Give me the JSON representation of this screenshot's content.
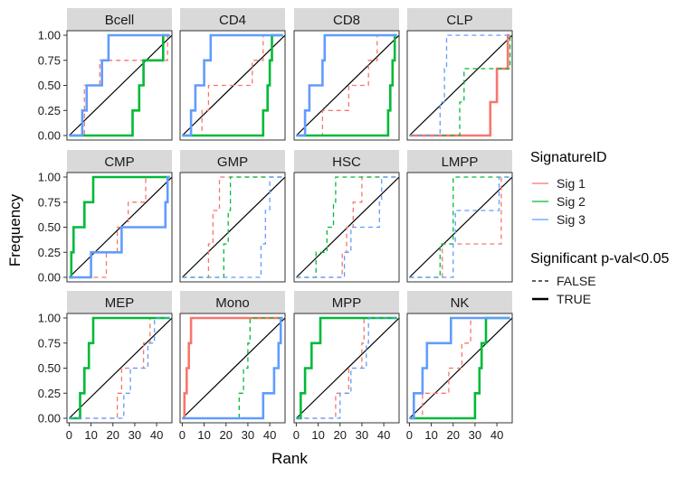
{
  "chart_data": {
    "type": "line",
    "subtype": "step-ecdf-facets",
    "title": "",
    "xlabel": "Rank",
    "ylabel": "Frequency",
    "xlim": [
      -1,
      47
    ],
    "ylim": [
      0,
      1
    ],
    "x_ticks": [
      0,
      10,
      20,
      30,
      40
    ],
    "y_ticks": [
      0,
      0.25,
      0.5,
      0.75,
      1
    ],
    "y_tick_labels": [
      "0.00",
      "0.25",
      "0.50",
      "0.75",
      "1.00"
    ],
    "legend_color_title": "SignatureID",
    "legend_linetype_title": "Significant p-val<0.05",
    "legend_placement": "right",
    "series": [
      {
        "name": "Sig 1",
        "color": "#F8766D"
      },
      {
        "name": "Sig 2",
        "color": "#00BA38"
      },
      {
        "name": "Sig 3",
        "color": "#619CFF"
      }
    ],
    "linetypes": [
      {
        "name": "FALSE",
        "dash": "dashed"
      },
      {
        "name": "TRUE",
        "dash": "solid"
      }
    ],
    "panels": [
      {
        "name": "Bcell",
        "lines": [
          {
            "sig": "Sig 1",
            "sig_flag": false,
            "x": [
              0,
              7,
              9,
              14,
              20,
              38,
              45
            ],
            "y": [
              0,
              0.5,
              0.5,
              0.75,
              0.75,
              0.75,
              1
            ]
          },
          {
            "sig": "Sig 2",
            "sig_flag": true,
            "x": [
              0,
              29,
              32,
              34,
              40,
              43,
              46
            ],
            "y": [
              0,
              0.25,
              0.5,
              0.75,
              0.75,
              1,
              1
            ]
          },
          {
            "sig": "Sig 3",
            "sig_flag": true,
            "x": [
              0,
              6,
              8,
              15,
              18,
              46
            ],
            "y": [
              0,
              0.25,
              0.5,
              0.75,
              1,
              1
            ]
          }
        ]
      },
      {
        "name": "CD4",
        "lines": [
          {
            "sig": "Sig 1",
            "sig_flag": false,
            "x": [
              0,
              9,
              12,
              24,
              32,
              37,
              46
            ],
            "y": [
              0,
              0.25,
              0.5,
              0.5,
              0.75,
              1,
              1
            ]
          },
          {
            "sig": "Sig 2",
            "sig_flag": true,
            "x": [
              0,
              37,
              39,
              40,
              41,
              46
            ],
            "y": [
              0,
              0.25,
              0.5,
              0.75,
              1,
              1
            ]
          },
          {
            "sig": "Sig 3",
            "sig_flag": true,
            "x": [
              0,
              4,
              6,
              10,
              13,
              46
            ],
            "y": [
              0,
              0.25,
              0.5,
              0.75,
              1,
              1
            ]
          }
        ]
      },
      {
        "name": "CD8",
        "lines": [
          {
            "sig": "Sig 1",
            "sig_flag": false,
            "x": [
              0,
              12,
              24,
              33,
              37,
              46
            ],
            "y": [
              0,
              0.25,
              0.5,
              0.75,
              1,
              1
            ]
          },
          {
            "sig": "Sig 2",
            "sig_flag": true,
            "x": [
              0,
              42,
              43,
              44,
              45,
              46
            ],
            "y": [
              0,
              0.25,
              0.5,
              0.75,
              1,
              1
            ]
          },
          {
            "sig": "Sig 3",
            "sig_flag": true,
            "x": [
              0,
              4,
              6,
              12,
              13,
              46
            ],
            "y": [
              0,
              0.25,
              0.5,
              0.75,
              1,
              1
            ]
          }
        ]
      },
      {
        "name": "CLP",
        "lines": [
          {
            "sig": "Sig 1",
            "sig_flag": true,
            "x": [
              0,
              37,
              40,
              45,
              46
            ],
            "y": [
              0,
              0.333,
              0.667,
              1,
              1
            ]
          },
          {
            "sig": "Sig 2",
            "sig_flag": false,
            "x": [
              0,
              23,
              25,
              46
            ],
            "y": [
              0,
              0.333,
              0.667,
              1
            ]
          },
          {
            "sig": "Sig 3",
            "sig_flag": false,
            "x": [
              0,
              14,
              16,
              17,
              46
            ],
            "y": [
              0,
              0.333,
              0.667,
              1,
              1
            ]
          }
        ]
      },
      {
        "name": "CMP",
        "lines": [
          {
            "sig": "Sig 1",
            "sig_flag": false,
            "x": [
              0,
              17,
              22,
              27,
              35,
              46
            ],
            "y": [
              0,
              0.25,
              0.5,
              0.75,
              1,
              1
            ]
          },
          {
            "sig": "Sig 2",
            "sig_flag": true,
            "x": [
              0,
              1,
              2,
              7,
              11,
              46
            ],
            "y": [
              0,
              0.25,
              0.5,
              0.75,
              1,
              1
            ]
          },
          {
            "sig": "Sig 3",
            "sig_flag": true,
            "x": [
              0,
              10,
              24,
              44,
              45,
              46
            ],
            "y": [
              0,
              0.25,
              0.5,
              0.75,
              1,
              1
            ]
          }
        ]
      },
      {
        "name": "GMP",
        "lines": [
          {
            "sig": "Sig 1",
            "sig_flag": false,
            "x": [
              0,
              12,
              14,
              17,
              46
            ],
            "y": [
              0,
              0.333,
              0.667,
              1,
              1
            ]
          },
          {
            "sig": "Sig 2",
            "sig_flag": false,
            "x": [
              0,
              19,
              21,
              22,
              46
            ],
            "y": [
              0,
              0.333,
              0.667,
              1,
              1
            ]
          },
          {
            "sig": "Sig 3",
            "sig_flag": false,
            "x": [
              0,
              36,
              38,
              40,
              46
            ],
            "y": [
              0,
              0.333,
              0.667,
              1,
              1
            ]
          }
        ]
      },
      {
        "name": "HSC",
        "lines": [
          {
            "sig": "Sig 1",
            "sig_flag": false,
            "x": [
              0,
              21,
              23,
              26,
              30,
              46
            ],
            "y": [
              0,
              0.25,
              0.5,
              0.75,
              1,
              1
            ]
          },
          {
            "sig": "Sig 2",
            "sig_flag": false,
            "x": [
              0,
              9,
              14,
              17,
              18,
              46
            ],
            "y": [
              0,
              0.25,
              0.5,
              0.75,
              1,
              1
            ]
          },
          {
            "sig": "Sig 3",
            "sig_flag": false,
            "x": [
              0,
              22,
              25,
              38,
              39,
              46
            ],
            "y": [
              0,
              0.25,
              0.5,
              0.75,
              1,
              1
            ]
          }
        ]
      },
      {
        "name": "LMPP",
        "lines": [
          {
            "sig": "Sig 1",
            "sig_flag": false,
            "x": [
              0,
              15,
              40,
              42,
              46
            ],
            "y": [
              0,
              0.333,
              0.333,
              1,
              1
            ]
          },
          {
            "sig": "Sig 2",
            "sig_flag": false,
            "x": [
              0,
              14,
              20,
              36,
              46
            ],
            "y": [
              0,
              0.333,
              1,
              1,
              1
            ]
          },
          {
            "sig": "Sig 3",
            "sig_flag": false,
            "x": [
              0,
              20,
              21,
              40,
              41,
              46
            ],
            "y": [
              0,
              0.333,
              0.667,
              0.667,
              1,
              1
            ]
          }
        ]
      },
      {
        "name": "MEP",
        "lines": [
          {
            "sig": "Sig 1",
            "sig_flag": false,
            "x": [
              0,
              22,
              24,
              34,
              37,
              46
            ],
            "y": [
              0,
              0.25,
              0.5,
              0.75,
              1,
              1
            ]
          },
          {
            "sig": "Sig 2",
            "sig_flag": true,
            "x": [
              0,
              5,
              7,
              9,
              11,
              46
            ],
            "y": [
              0,
              0.25,
              0.5,
              0.75,
              1,
              1
            ]
          },
          {
            "sig": "Sig 3",
            "sig_flag": false,
            "x": [
              0,
              25,
              28,
              36,
              39,
              46
            ],
            "y": [
              0,
              0.25,
              0.5,
              0.75,
              1,
              1
            ]
          }
        ]
      },
      {
        "name": "Mono",
        "lines": [
          {
            "sig": "Sig 1",
            "sig_flag": true,
            "x": [
              0,
              1,
              2,
              3,
              4,
              46
            ],
            "y": [
              0,
              0.25,
              0.5,
              0.75,
              1,
              1
            ]
          },
          {
            "sig": "Sig 2",
            "sig_flag": false,
            "x": [
              0,
              26,
              28,
              30,
              31,
              46
            ],
            "y": [
              0,
              0.25,
              0.5,
              0.75,
              1,
              1
            ]
          },
          {
            "sig": "Sig 3",
            "sig_flag": true,
            "x": [
              0,
              37,
              42,
              44,
              45,
              46
            ],
            "y": [
              0,
              0.25,
              0.5,
              0.75,
              1,
              1
            ]
          }
        ]
      },
      {
        "name": "MPP",
        "lines": [
          {
            "sig": "Sig 1",
            "sig_flag": false,
            "x": [
              0,
              18,
              24,
              30,
              31,
              46
            ],
            "y": [
              0,
              0.25,
              0.5,
              0.75,
              1,
              1
            ]
          },
          {
            "sig": "Sig 2",
            "sig_flag": true,
            "x": [
              0,
              2,
              4,
              7,
              11,
              46
            ],
            "y": [
              0,
              0.25,
              0.5,
              0.75,
              1,
              1
            ]
          },
          {
            "sig": "Sig 3",
            "sig_flag": false,
            "x": [
              0,
              20,
              25,
              32,
              33,
              46
            ],
            "y": [
              0,
              0.25,
              0.5,
              0.75,
              1,
              1
            ]
          }
        ]
      },
      {
        "name": "NK",
        "lines": [
          {
            "sig": "Sig 1",
            "sig_flag": false,
            "x": [
              0,
              6,
              18,
              24,
              28,
              46
            ],
            "y": [
              0,
              0.25,
              0.5,
              0.75,
              1,
              1
            ]
          },
          {
            "sig": "Sig 2",
            "sig_flag": true,
            "x": [
              0,
              30,
              32,
              33,
              35,
              46
            ],
            "y": [
              0,
              0.25,
              0.5,
              0.75,
              1,
              1
            ]
          },
          {
            "sig": "Sig 3",
            "sig_flag": true,
            "x": [
              0,
              2,
              6,
              8,
              19,
              46
            ],
            "y": [
              0,
              0.25,
              0.5,
              0.75,
              1,
              1
            ]
          }
        ]
      }
    ]
  }
}
